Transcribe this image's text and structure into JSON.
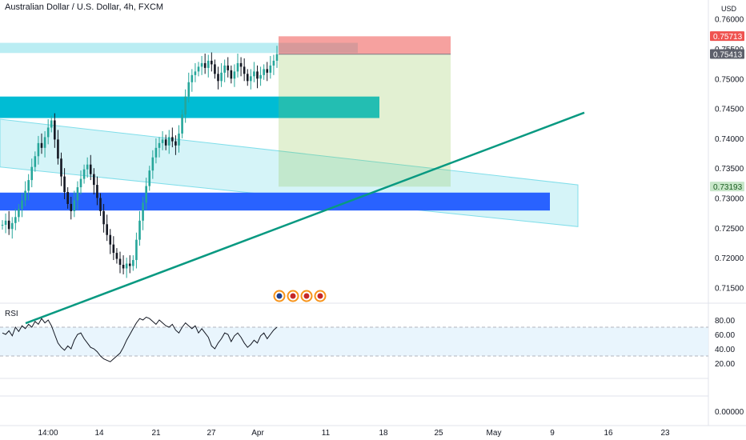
{
  "chart_data": [
    {
      "type": "candlestick",
      "title": "Australian Dollar / U.S. Dollar, 4h, FXCM",
      "ylabel": "USD",
      "ylim": [
        0.7125,
        0.7605
      ],
      "y_ticks": [
        "0.76000",
        "0.75500",
        "0.75000",
        "0.74500",
        "0.74000",
        "0.73500",
        "0.73000",
        "0.72500",
        "0.72000",
        "0.71500"
      ],
      "x_ticks": [
        "14:00",
        "14",
        "21",
        "27",
        "Apr",
        "11",
        "18",
        "25",
        "May",
        "9",
        "16",
        "23"
      ],
      "price_labels": [
        {
          "value": "0.75713",
          "color": "#ef5350"
        },
        {
          "value": "0.75413",
          "color": "#5d606b"
        },
        {
          "value": "0.73193",
          "color": "#c8e6c9"
        }
      ],
      "close_path": [
        [
          0.7255,
          0.7262,
          0.7248,
          0.7258,
          0.7268,
          0.7282,
          0.7296,
          0.7312,
          0.733,
          0.7352,
          0.737,
          0.7392,
          0.7384,
          0.7402,
          0.7418,
          0.743,
          0.7398,
          0.7366,
          0.7336,
          0.731,
          0.729,
          0.7278,
          0.7296,
          0.7318,
          0.7332,
          0.7348,
          0.7356,
          0.734,
          0.7322,
          0.73,
          0.7278,
          0.7256,
          0.7238,
          0.7222,
          0.7208,
          0.7198,
          0.7188,
          0.7182,
          0.719,
          0.7186,
          0.7196,
          0.723,
          0.7262,
          0.7292,
          0.732,
          0.7346,
          0.7368,
          0.7384,
          0.7392,
          0.7398,
          0.7388,
          0.7402,
          0.7395,
          0.7388,
          0.7408,
          0.744,
          0.747,
          0.7494,
          0.7506,
          0.7512,
          0.752,
          0.7526,
          0.7518,
          0.753,
          0.7524,
          0.7508,
          0.7496,
          0.751,
          0.7522,
          0.7514,
          0.75,
          0.7512,
          0.7526,
          0.752,
          0.7508,
          0.7496,
          0.7504,
          0.7512,
          0.75,
          0.7506,
          0.7516,
          0.751,
          0.7522,
          0.753,
          0.7541
        ]
      ],
      "zones": [
        {
          "name": "Supply zone",
          "from": 0.7543,
          "to": 0.756,
          "color": "#b2ebf2"
        },
        {
          "name": "Resistance zone",
          "from": 0.7434,
          "to": 0.747,
          "color": "#00bcd4"
        },
        {
          "name": "Support zone",
          "from": 0.7279,
          "to": 0.7309,
          "color": "#2962ff"
        }
      ],
      "long_position": {
        "entry": 0.7541,
        "stop": 0.7571,
        "target": 0.7319
      },
      "trendline": {
        "from": {
          "price": 0.709
        },
        "to": {
          "price": 0.7443
        }
      },
      "channel": {
        "upper_start": 0.7432,
        "upper_end": 0.7322,
        "lower_start": 0.7352,
        "lower_end": 0.7252
      }
    },
    {
      "type": "line",
      "title": "RSI",
      "ylim": [
        0,
        100
      ],
      "y_ticks": [
        "80.00",
        "60.00",
        "40.00",
        "20.00",
        "0.00000"
      ],
      "bands": {
        "upper": 70,
        "lower": 30
      },
      "values": [
        62,
        60,
        65,
        58,
        70,
        64,
        72,
        68,
        74,
        70,
        78,
        74,
        82,
        76,
        80,
        72,
        60,
        48,
        42,
        38,
        44,
        40,
        52,
        60,
        62,
        54,
        48,
        42,
        40,
        36,
        30,
        26,
        24,
        22,
        26,
        30,
        34,
        42,
        52,
        60,
        68,
        76,
        82,
        80,
        84,
        82,
        78,
        74,
        80,
        76,
        72,
        70,
        74,
        66,
        62,
        70,
        76,
        72,
        68,
        72,
        62,
        68,
        62,
        56,
        44,
        40,
        48,
        54,
        62,
        60,
        50,
        58,
        62,
        56,
        48,
        42,
        46,
        52,
        48,
        58,
        62,
        54,
        60,
        66,
        70
      ]
    }
  ]
}
